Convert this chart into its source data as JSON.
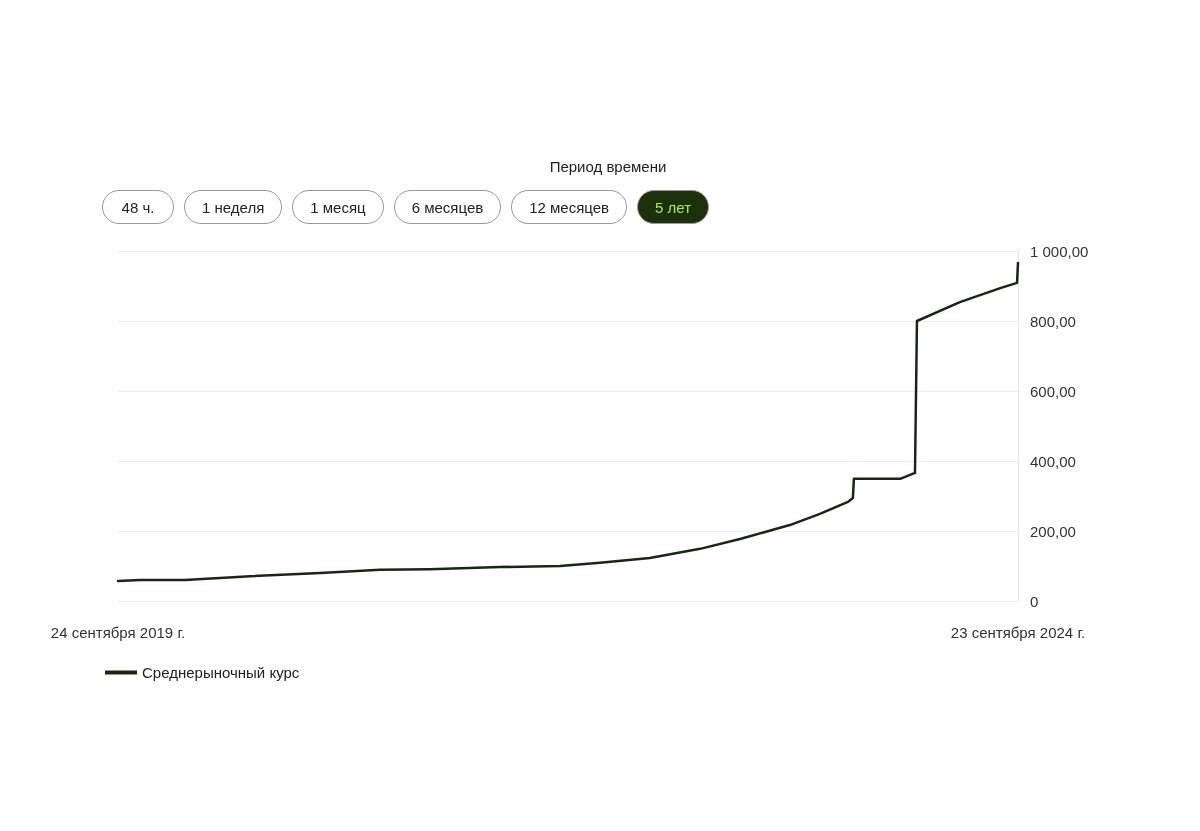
{
  "chart_data": {
    "type": "line",
    "title": "Период времени",
    "annotations": [
      "48 ч.",
      "1 неделя",
      "1 месяц",
      "6 месяцев",
      "12 месяцев",
      "5 лет"
    ],
    "x": [
      "2019-09-24",
      "2019-11-08",
      "2020-02-07",
      "2020-06-18",
      "2020-11-07",
      "2021-03-09",
      "2021-06-18",
      "2021-11-07",
      "2022-03-09",
      "2022-05-29",
      "2022-09-07",
      "2022-12-18",
      "2023-03-09",
      "2023-06-18",
      "2023-08-18",
      "2023-10-14",
      "2023-10-24",
      "2023-10-26",
      "2024-01-28",
      "2024-02-27",
      "2024-03-02",
      "2024-05-28",
      "2024-08-18",
      "2024-09-21",
      "2024-09-23"
    ],
    "series": [
      {
        "name": "Среднерыночный курс",
        "color": "#1a2612",
        "values": [
          57,
          60,
          60,
          71,
          80,
          89,
          91,
          97,
          100,
          109,
          123,
          149,
          177,
          217,
          249,
          283,
          294,
          349,
          349,
          366,
          800,
          854,
          894,
          909,
          966
        ]
      }
    ],
    "xlim": [
      "2019-09-24",
      "2024-09-23"
    ],
    "xticks": [
      {
        "value": "2019-09-24",
        "label": "24 сентября 2019 г."
      },
      {
        "value": "2024-09-23",
        "label": "23 сентября 2024 г."
      }
    ],
    "ylim": [
      0,
      1000
    ],
    "yticks": [
      0,
      {
        "value": 200,
        "label": "200,00"
      },
      {
        "value": 400,
        "label": "400,00"
      },
      {
        "value": 600,
        "label": "600,00"
      },
      {
        "value": 800,
        "label": "800,00"
      },
      {
        "value": 1000,
        "label": "1 000,00"
      }
    ],
    "grid": "y",
    "legend": "bottom left",
    "marker": "none",
    "line_style": "solid"
  }
}
